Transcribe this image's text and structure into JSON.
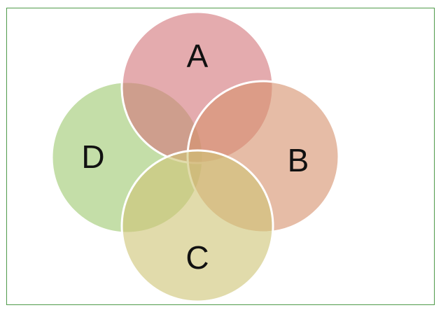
{
  "diagram": {
    "sets": [
      {
        "label": "A",
        "color": "#d98a8e"
      },
      {
        "label": "B",
        "color": "#dba88a"
      },
      {
        "label": "C",
        "color": "#d8d38e"
      },
      {
        "label": "D",
        "color": "#a7cd7e"
      }
    ],
    "frame_color": "#4f9a4a"
  }
}
